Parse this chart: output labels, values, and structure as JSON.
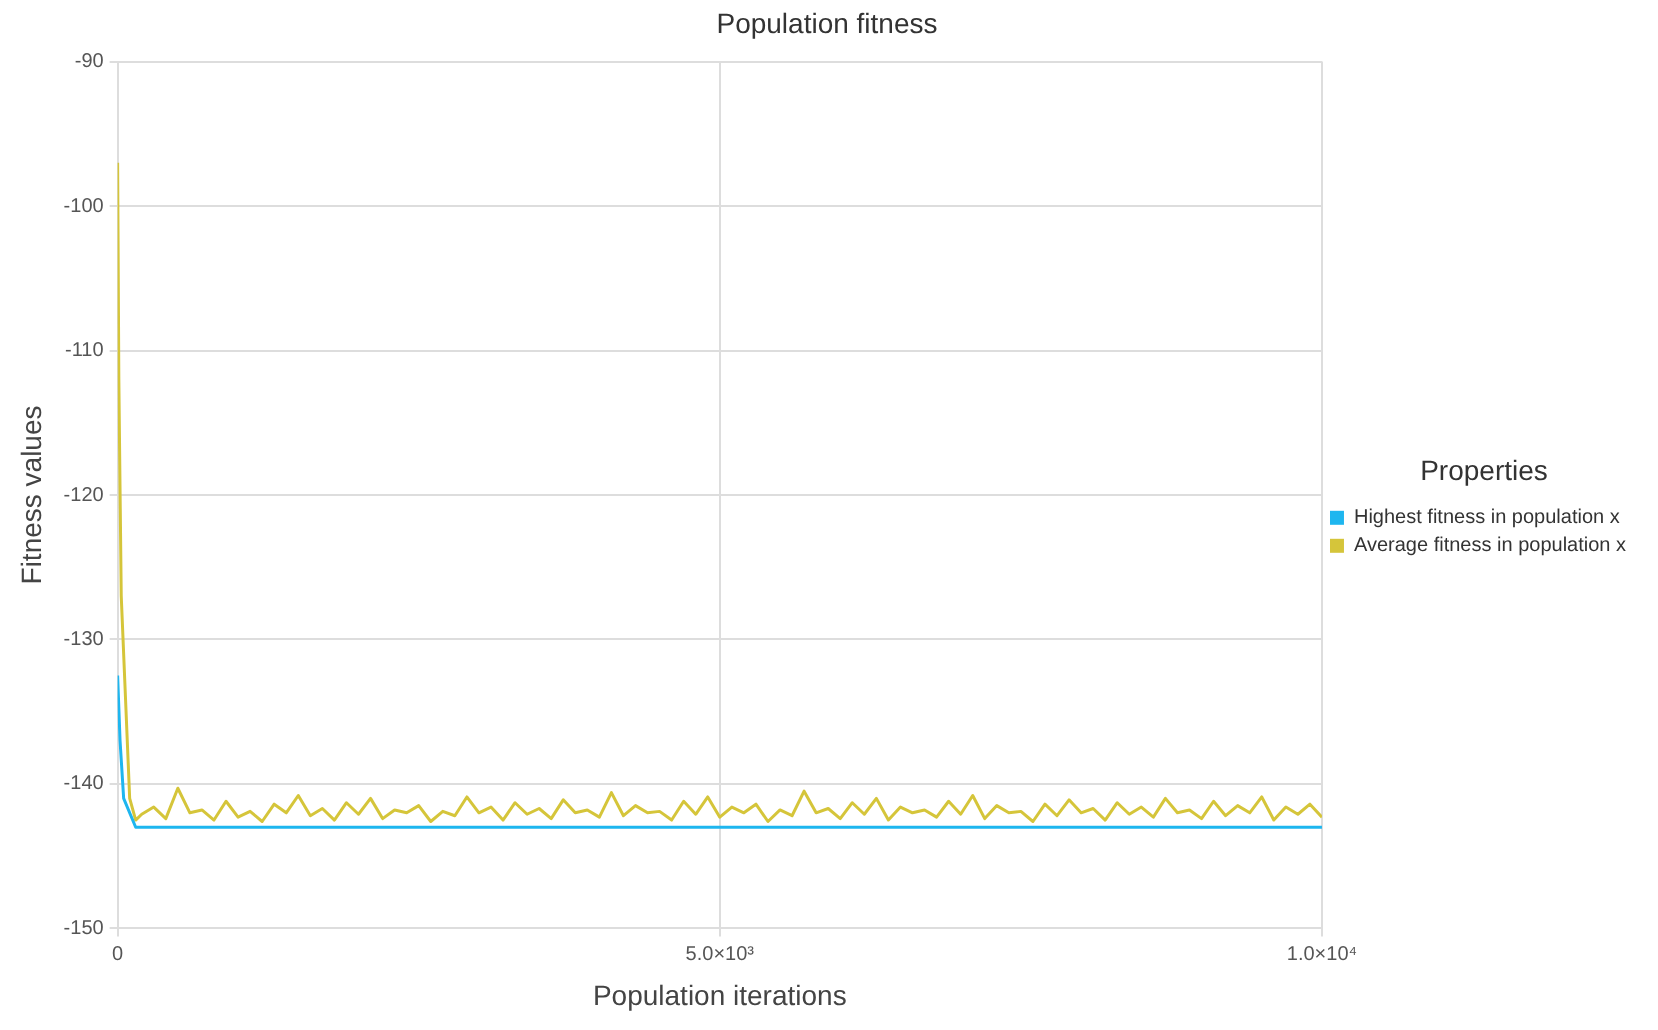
{
  "chart_data": {
    "type": "line",
    "title": "Population fitness",
    "xlabel": "Population iterations",
    "ylabel": "Fitness values",
    "legend_title": "Properties",
    "legend": "right",
    "grid": true,
    "marker": "none",
    "line_style": "solid",
    "xlim": [
      0,
      10000
    ],
    "xticks": [
      0,
      {
        "value": 5000,
        "label": "5.0×10³"
      },
      {
        "value": 10000,
        "label": "1.0×10⁴"
      }
    ],
    "ylim": [
      -150,
      -90
    ],
    "yticks": [
      -150,
      -140,
      -130,
      -120,
      -110,
      -100,
      -90
    ],
    "series": [
      {
        "name": "Highest fitness in population x",
        "color": "#1eb6ef",
        "x": [
          0,
          20,
          50,
          150,
          1000,
          2000,
          3000,
          4000,
          5000,
          6000,
          7000,
          8000,
          9000,
          10000
        ],
        "values": [
          -132.5,
          -137,
          -141,
          -143,
          -143,
          -143,
          -143,
          -143,
          -143,
          -143,
          -143,
          -143,
          -143,
          -143
        ]
      },
      {
        "name": "Average fitness in population x",
        "color": "#d5c53a",
        "x": [
          0,
          10,
          30,
          60,
          100,
          150,
          200,
          300,
          400,
          500,
          600,
          700,
          800,
          900,
          1000,
          1100,
          1200,
          1300,
          1400,
          1500,
          1600,
          1700,
          1800,
          1900,
          2000,
          2100,
          2200,
          2300,
          2400,
          2500,
          2600,
          2700,
          2800,
          2900,
          3000,
          3100,
          3200,
          3300,
          3400,
          3500,
          3600,
          3700,
          3800,
          3900,
          4000,
          4100,
          4200,
          4300,
          4400,
          4500,
          4600,
          4700,
          4800,
          4900,
          5000,
          5100,
          5200,
          5300,
          5400,
          5500,
          5600,
          5700,
          5800,
          5900,
          6000,
          6100,
          6200,
          6300,
          6400,
          6500,
          6600,
          6700,
          6800,
          6900,
          7000,
          7100,
          7200,
          7300,
          7400,
          7500,
          7600,
          7700,
          7800,
          7900,
          8000,
          8100,
          8200,
          8300,
          8400,
          8500,
          8600,
          8700,
          8800,
          8900,
          9000,
          9100,
          9200,
          9300,
          9400,
          9500,
          9600,
          9700,
          9800,
          9900,
          10000
        ],
        "values": [
          -97,
          -112,
          -127,
          -133,
          -141,
          -142.5,
          -142.1,
          -141.6,
          -142.4,
          -140.3,
          -142.0,
          -141.8,
          -142.5,
          -141.2,
          -142.3,
          -141.9,
          -142.6,
          -141.4,
          -142.0,
          -140.8,
          -142.2,
          -141.7,
          -142.5,
          -141.3,
          -142.1,
          -141.0,
          -142.4,
          -141.8,
          -142.0,
          -141.5,
          -142.6,
          -141.9,
          -142.2,
          -140.9,
          -142.0,
          -141.6,
          -142.5,
          -141.3,
          -142.1,
          -141.7,
          -142.4,
          -141.1,
          -142.0,
          -141.8,
          -142.3,
          -140.6,
          -142.2,
          -141.5,
          -142.0,
          -141.9,
          -142.5,
          -141.2,
          -142.1,
          -140.9,
          -142.3,
          -141.6,
          -142.0,
          -141.4,
          -142.6,
          -141.8,
          -142.2,
          -140.5,
          -142.0,
          -141.7,
          -142.4,
          -141.3,
          -142.1,
          -141.0,
          -142.5,
          -141.6,
          -142.0,
          -141.8,
          -142.3,
          -141.2,
          -142.1,
          -140.8,
          -142.4,
          -141.5,
          -142.0,
          -141.9,
          -142.6,
          -141.4,
          -142.2,
          -141.1,
          -142.0,
          -141.7,
          -142.5,
          -141.3,
          -142.1,
          -141.6,
          -142.3,
          -141.0,
          -142.0,
          -141.8,
          -142.4,
          -141.2,
          -142.2,
          -141.5,
          -142.0,
          -140.9,
          -142.5,
          -141.6,
          -142.1,
          -141.4,
          -142.3
        ]
      }
    ]
  }
}
